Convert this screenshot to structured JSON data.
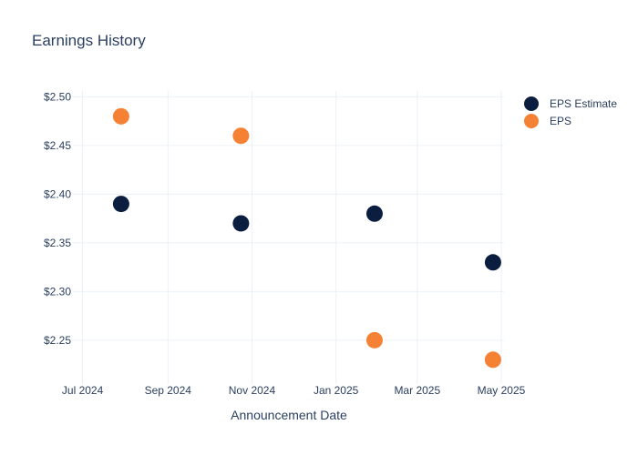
{
  "chart_data": {
    "type": "scatter",
    "title": "Earnings History",
    "xlabel": "Announcement Date",
    "ylabel": "",
    "x_ticks": [
      "Jul 2024",
      "Sep 2024",
      "Nov 2024",
      "Jan 2025",
      "Mar 2025",
      "May 2025"
    ],
    "x_tick_dates": [
      "2024-07-01",
      "2024-09-01",
      "2024-11-01",
      "2025-01-01",
      "2025-03-01",
      "2025-05-01"
    ],
    "xlim": [
      "2024-06-24",
      "2025-05-03"
    ],
    "y_ticks": [
      "$2.25",
      "$2.30",
      "$2.35",
      "$2.40",
      "$2.45",
      "$2.50"
    ],
    "y_tick_values": [
      2.25,
      2.3,
      2.35,
      2.4,
      2.45,
      2.5
    ],
    "ylim": [
      2.205,
      2.506
    ],
    "grid": true,
    "legend_position": "top-right",
    "series": [
      {
        "name": "EPS Estimate",
        "color": "#0b1e3f",
        "points": [
          {
            "x": "2024-07-29",
            "y": 2.39
          },
          {
            "x": "2024-10-24",
            "y": 2.37
          },
          {
            "x": "2025-01-29",
            "y": 2.38
          },
          {
            "x": "2025-04-25",
            "y": 2.33
          }
        ]
      },
      {
        "name": "EPS",
        "color": "#f58134",
        "points": [
          {
            "x": "2024-07-29",
            "y": 2.48
          },
          {
            "x": "2024-10-24",
            "y": 2.46
          },
          {
            "x": "2025-01-29",
            "y": 2.25
          },
          {
            "x": "2025-04-25",
            "y": 2.23
          }
        ]
      }
    ]
  }
}
